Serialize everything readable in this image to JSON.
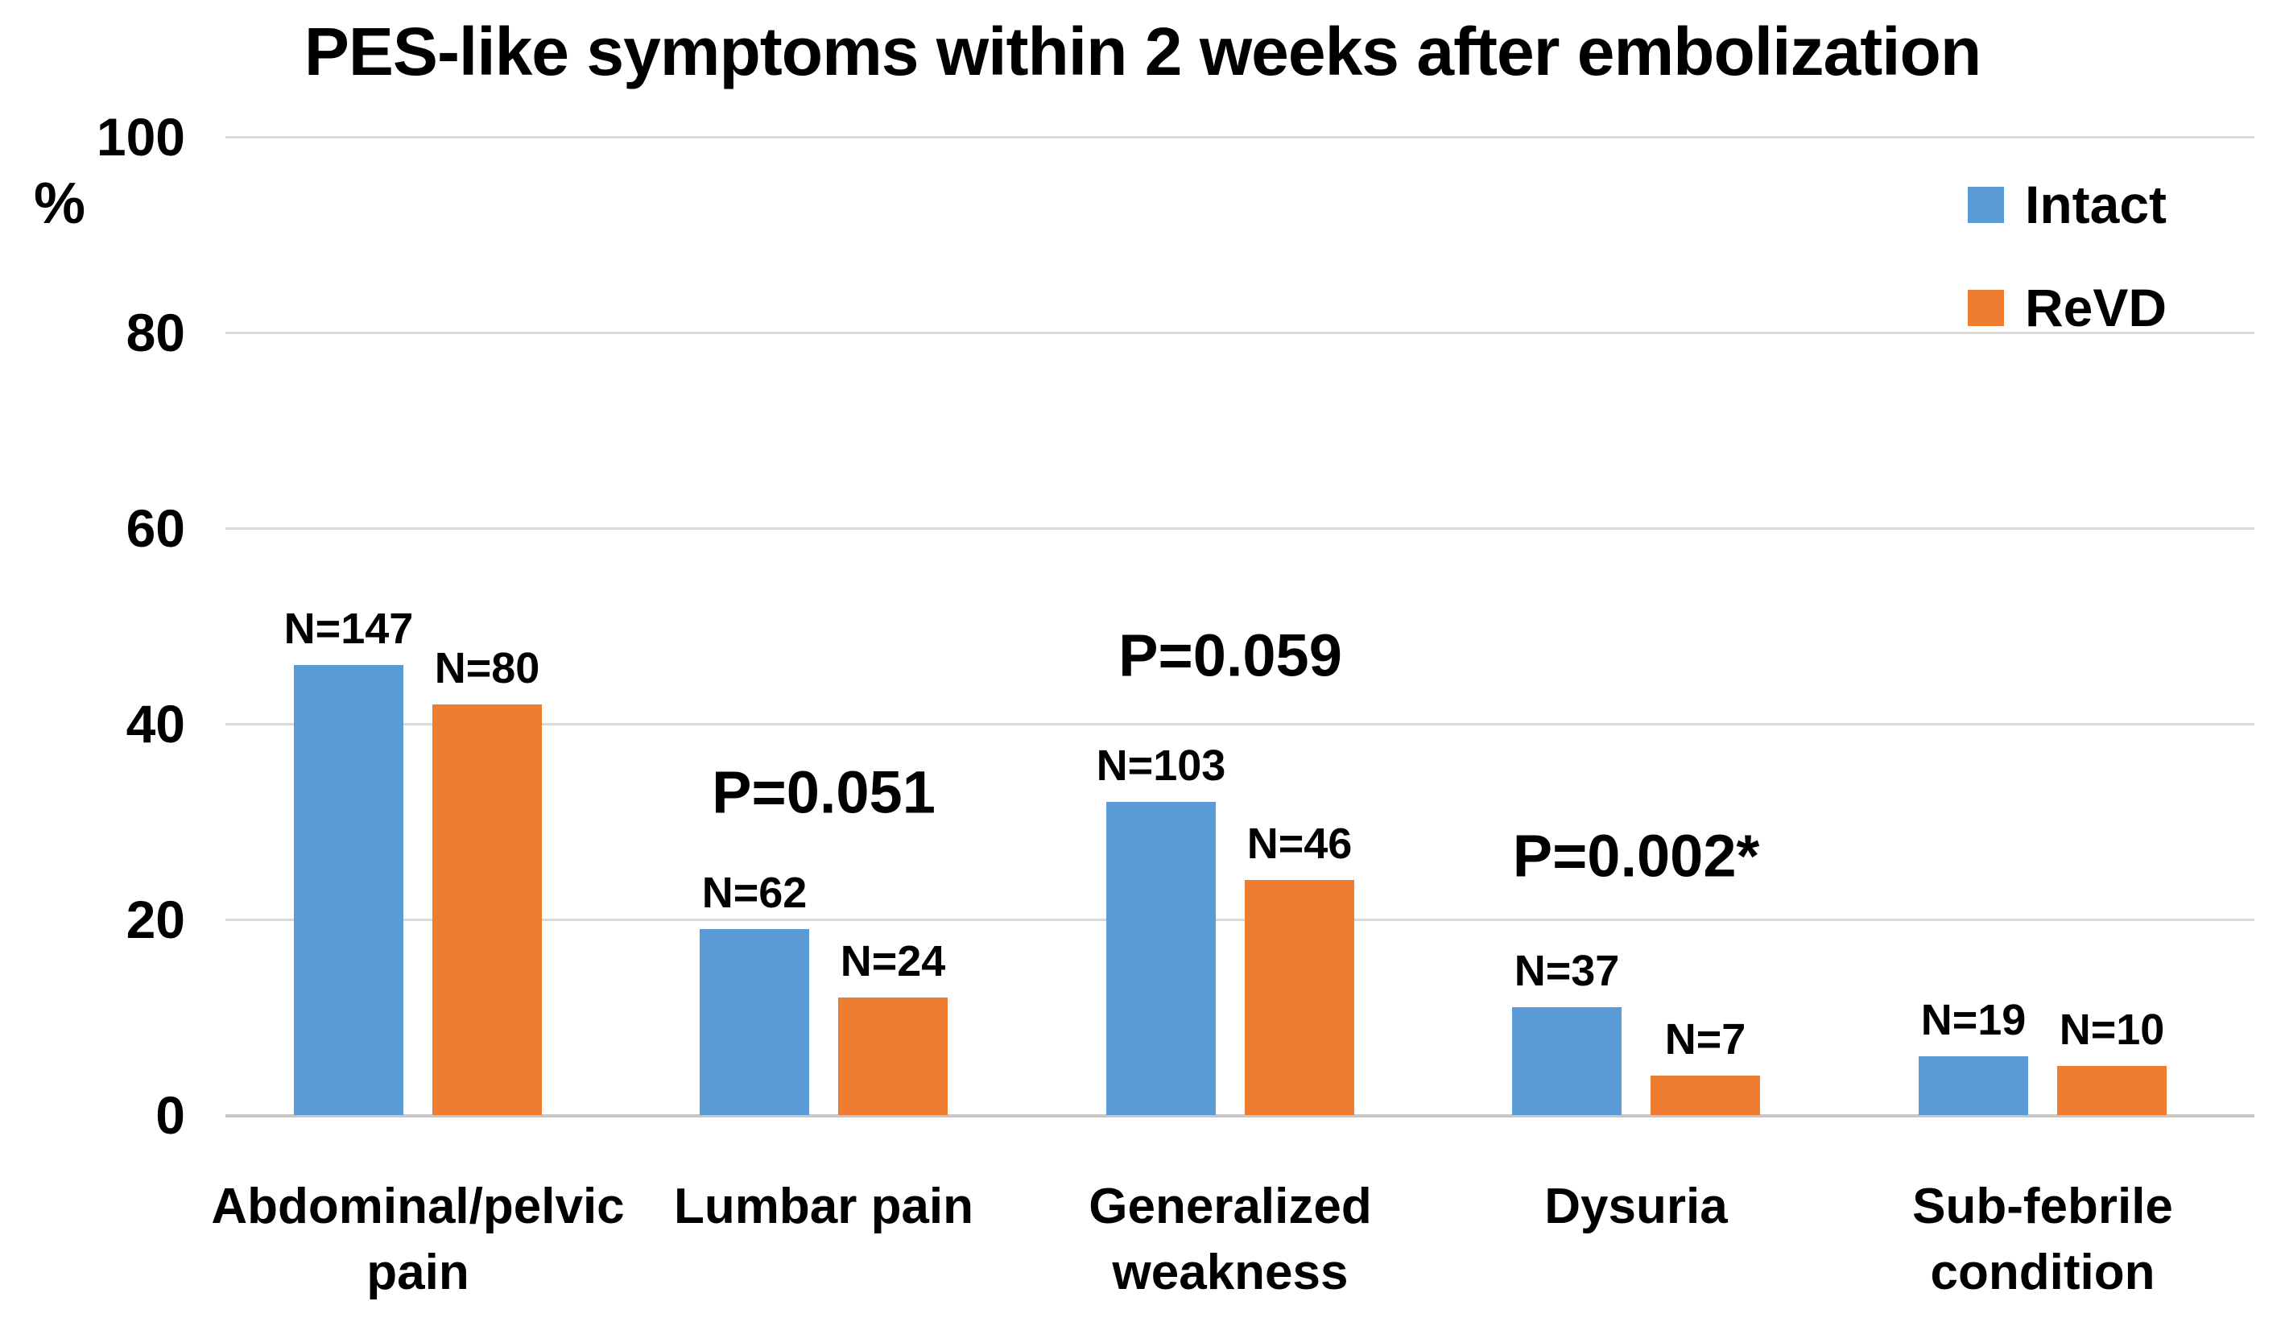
{
  "title": "PES-like symptoms within 2 weeks after embolization",
  "y_axis": {
    "unit_label": "%",
    "ticks": [
      0,
      20,
      40,
      60,
      80,
      100
    ]
  },
  "legend": [
    {
      "label": "Intact",
      "color": "#5B9BD5"
    },
    {
      "label": "ReVD",
      "color": "#ED7D31"
    }
  ],
  "chart_data": {
    "type": "bar",
    "title": "PES-like symptoms within 2 weeks after embolization",
    "xlabel": "",
    "ylabel": "%",
    "ylim": [
      0,
      100
    ],
    "yticks": [
      0,
      20,
      40,
      60,
      80,
      100
    ],
    "grid": true,
    "legend_position": "top-right",
    "categories": [
      "Abdominal/pelvic pain",
      "Lumbar pain",
      "Generalized weakness",
      "Dysuria",
      "Sub-febrile condition"
    ],
    "category_display_lines": [
      [
        "Abdominal/pelvic",
        "pain"
      ],
      [
        "Lumbar pain"
      ],
      [
        "Generalized",
        "weakness"
      ],
      [
        "Dysuria"
      ],
      [
        "Sub-febrile",
        "condition"
      ]
    ],
    "series": [
      {
        "name": "Intact",
        "color": "#5B9BD5",
        "values": [
          46,
          19,
          32,
          11,
          6
        ],
        "bar_labels": [
          "N=147",
          "N=62",
          "N=103",
          "N=37",
          "N=19"
        ]
      },
      {
        "name": "ReVD",
        "color": "#ED7D31",
        "values": [
          42,
          12,
          24,
          4,
          5
        ],
        "bar_labels": [
          "N=80",
          "N=24",
          "N=46",
          "N=7",
          "N=10"
        ]
      }
    ],
    "annotations": [
      {
        "text": "P=0.051",
        "category_index": 1,
        "y_percent": 33
      },
      {
        "text": "P=0.059",
        "category_index": 2,
        "y_percent": 47
      },
      {
        "text": "P=0.002*",
        "category_index": 3,
        "y_percent": 26.5
      }
    ]
  }
}
